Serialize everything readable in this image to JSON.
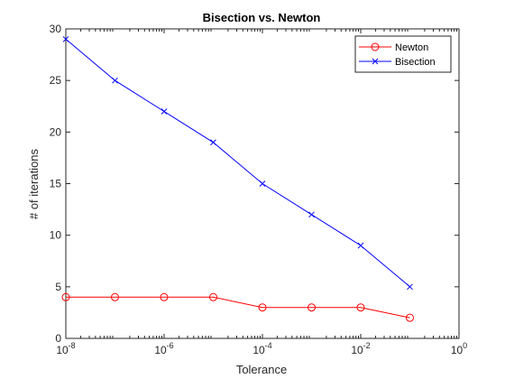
{
  "chart_data": {
    "type": "line",
    "title": "Bisection vs. Newton",
    "xlabel": "Tolerance",
    "ylabel": "# of iterations",
    "x_scale": "log",
    "xlim": [
      1e-08,
      1
    ],
    "ylim": [
      0,
      30
    ],
    "x_ticks": [
      {
        "value": 1e-08,
        "base": "10",
        "exp": "-8"
      },
      {
        "value": 1e-06,
        "base": "10",
        "exp": "-6"
      },
      {
        "value": 0.0001,
        "base": "10",
        "exp": "-4"
      },
      {
        "value": 0.01,
        "base": "10",
        "exp": "-2"
      },
      {
        "value": 1,
        "base": "10",
        "exp": "0"
      }
    ],
    "y_ticks": [
      0,
      5,
      10,
      15,
      20,
      25,
      30
    ],
    "grid": false,
    "legend_position": "top-right",
    "x": [
      1e-08,
      1e-07,
      1e-06,
      1e-05,
      0.0001,
      0.001,
      0.01,
      0.1
    ],
    "series": [
      {
        "name": "Newton",
        "color": "#ff0000",
        "marker": "circle",
        "values": [
          4,
          4,
          4,
          4,
          3,
          3,
          3,
          2
        ]
      },
      {
        "name": "Bisection",
        "color": "#0000ff",
        "marker": "x",
        "values": [
          29,
          25,
          22,
          19,
          15,
          12,
          9,
          5
        ]
      }
    ]
  }
}
